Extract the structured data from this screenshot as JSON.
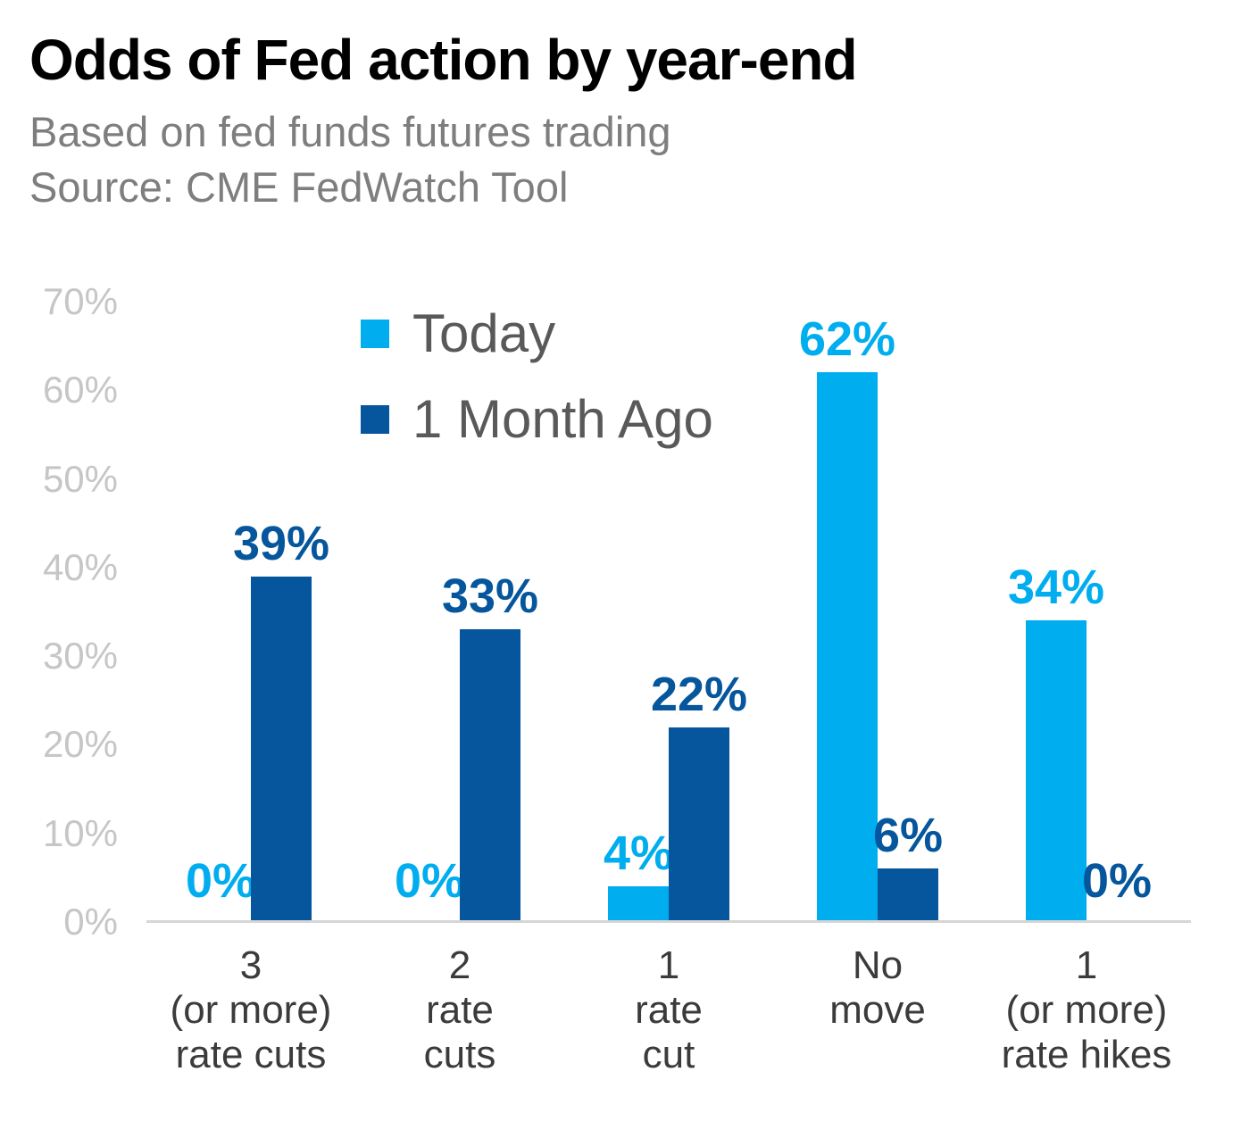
{
  "header": {
    "title": "Odds of Fed action by year-end",
    "subtitle": "Based on fed funds futures trading",
    "source": "Source: CME FedWatch Tool"
  },
  "chart_data": {
    "type": "bar",
    "categories": [
      "3\n(or more)\nrate cuts",
      "2\nrate\ncuts",
      "1\nrate\ncut",
      "No\nmove",
      "1\n(or more)\nrate hikes"
    ],
    "series": [
      {
        "name": "Today",
        "color": "#00ADEF",
        "values": [
          0,
          0,
          4,
          62,
          34
        ],
        "labels": [
          "0%",
          "0%",
          "4%",
          "62%",
          "34%"
        ]
      },
      {
        "name": "1 Month Ago",
        "color": "#05569C",
        "values": [
          39,
          33,
          22,
          6,
          0
        ],
        "labels": [
          "39%",
          "33%",
          "22%",
          "6%",
          "0%"
        ]
      }
    ],
    "title": "Odds of Fed action by year-end",
    "xlabel": "",
    "ylabel": "",
    "ylim": [
      0,
      70
    ],
    "yticks": [
      "0%",
      "10%",
      "20%",
      "30%",
      "40%",
      "50%",
      "60%",
      "70%"
    ],
    "grid": false,
    "legend_position": "upper-center",
    "value_labels": true
  },
  "colors": {
    "background": "#FFFFFF",
    "title_text": "#000000",
    "subtitle_text": "#7E7E7E",
    "legend_text": "#595959",
    "tick_label": "#C6C6C6",
    "category_label": "#3B3B3B",
    "baseline": "#D6D6D6",
    "series_today": "#00ADEF",
    "series_month_ago": "#05569C"
  }
}
